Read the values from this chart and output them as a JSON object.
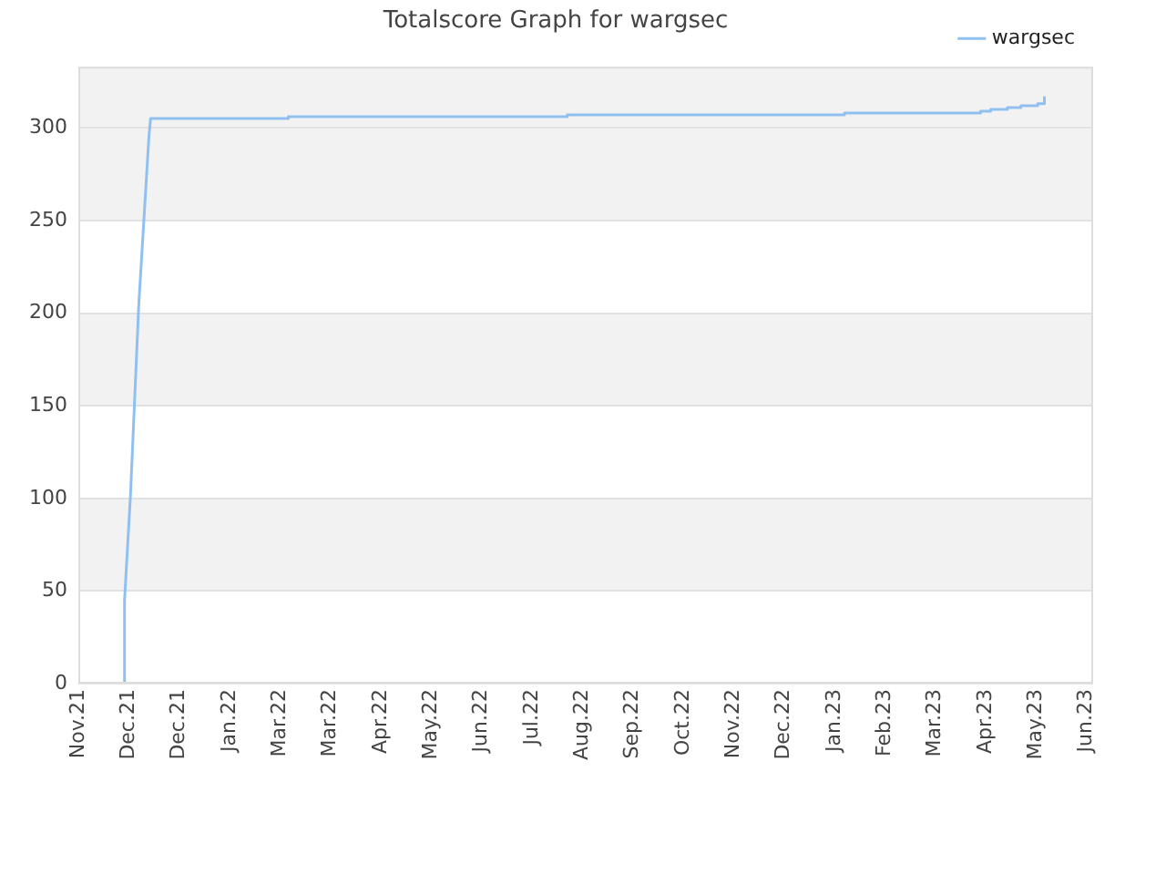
{
  "chart_data": {
    "type": "line",
    "title": "Totalscore Graph for wargsec",
    "series": [
      {
        "name": "wargsec",
        "color": "#90c0f0",
        "x": [
          "2021-11-28T12:00",
          "2021-11-28T12:00",
          "2021-12-02",
          "2021-12-07",
          "2021-12-13",
          "2021-12-14",
          "2022-03-06",
          "2022-03-06",
          "2022-08-19",
          "2022-08-19",
          "2023-01-31",
          "2023-01-31",
          "2023-04-22",
          "2023-04-22",
          "2023-04-28",
          "2023-04-28",
          "2023-05-08",
          "2023-05-08",
          "2023-05-16",
          "2023-05-16",
          "2023-05-26",
          "2023-05-26",
          "2023-05-30",
          "2023-05-30"
        ],
        "values": [
          0,
          45,
          101,
          205,
          295,
          305,
          305,
          306,
          306,
          307,
          307,
          308,
          308,
          309,
          309,
          310,
          310,
          311,
          311,
          312,
          312,
          313,
          313,
          317
        ]
      }
    ],
    "xlim": [
      "2021-11-01",
      "2023-06-28"
    ],
    "xticks": [
      {
        "value": "2021-11-01",
        "label": "Nov.21"
      },
      {
        "value": "2021-12-01",
        "label": "Dec.21"
      },
      {
        "value": "2021-12-31",
        "label": "Dec.21"
      },
      {
        "value": "2022-01-30",
        "label": "Jan.22"
      },
      {
        "value": "2022-03-01",
        "label": "Mar.22"
      },
      {
        "value": "2022-03-31",
        "label": "Mar.22"
      },
      {
        "value": "2022-04-30",
        "label": "Apr.22"
      },
      {
        "value": "2022-05-30",
        "label": "May.22"
      },
      {
        "value": "2022-06-29",
        "label": "Jun.22"
      },
      {
        "value": "2022-07-29",
        "label": "Jul.22"
      },
      {
        "value": "2022-08-28",
        "label": "Aug.22"
      },
      {
        "value": "2022-09-27",
        "label": "Sep.22"
      },
      {
        "value": "2022-10-27",
        "label": "Oct.22"
      },
      {
        "value": "2022-11-26",
        "label": "Nov.22"
      },
      {
        "value": "2022-12-26",
        "label": "Dec.22"
      },
      {
        "value": "2023-01-25",
        "label": "Jan.23"
      },
      {
        "value": "2023-02-24",
        "label": "Feb.23"
      },
      {
        "value": "2023-03-26",
        "label": "Mar.23"
      },
      {
        "value": "2023-04-25",
        "label": "Apr.23"
      },
      {
        "value": "2023-05-25",
        "label": "May.23"
      },
      {
        "value": "2023-06-24",
        "label": "Jun.23"
      }
    ],
    "ylim": [
      0,
      333
    ],
    "yticks": [
      0,
      50,
      100,
      150,
      200,
      250,
      300
    ],
    "grid": "y",
    "legend": "top right",
    "marker": "none",
    "line_style": "solid"
  }
}
